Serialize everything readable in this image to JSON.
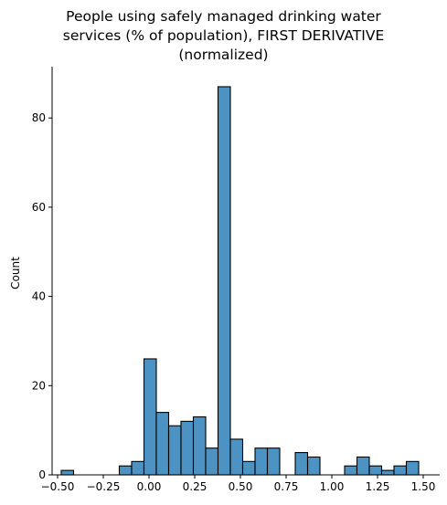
{
  "chart_data": {
    "type": "bar",
    "title_lines": [
      "People using safely managed drinking water",
      "services (% of population), FIRST DERIVATIVE",
      "(normalized)"
    ],
    "xlabel": "",
    "ylabel": "Count",
    "xlim": [
      -0.53,
      1.59
    ],
    "ylim": [
      0,
      91.5
    ],
    "bin_width": 0.0675,
    "bins": [
      {
        "x0": -0.48,
        "count": 1
      },
      {
        "x0": -0.4125,
        "count": 0
      },
      {
        "x0": -0.345,
        "count": 0
      },
      {
        "x0": -0.2775,
        "count": 0
      },
      {
        "x0": -0.21,
        "count": 0
      },
      {
        "x0": -0.1625,
        "count": 2
      },
      {
        "x0": -0.095,
        "count": 3
      },
      {
        "x0": -0.0275,
        "count": 26
      },
      {
        "x0": 0.04,
        "count": 14
      },
      {
        "x0": 0.1075,
        "count": 11
      },
      {
        "x0": 0.175,
        "count": 12
      },
      {
        "x0": 0.2425,
        "count": 13
      },
      {
        "x0": 0.31,
        "count": 6
      },
      {
        "x0": 0.3775,
        "count": 87
      },
      {
        "x0": 0.445,
        "count": 8
      },
      {
        "x0": 0.5125,
        "count": 3
      },
      {
        "x0": 0.58,
        "count": 6
      },
      {
        "x0": 0.6475,
        "count": 6
      },
      {
        "x0": 0.715,
        "count": 0
      },
      {
        "x0": 0.8,
        "count": 5
      },
      {
        "x0": 0.8675,
        "count": 4
      },
      {
        "x0": 0.935,
        "count": 0
      },
      {
        "x0": 1.0025,
        "count": 0
      },
      {
        "x0": 1.07,
        "count": 2
      },
      {
        "x0": 1.1375,
        "count": 4
      },
      {
        "x0": 1.205,
        "count": 2
      },
      {
        "x0": 1.2725,
        "count": 1
      },
      {
        "x0": 1.34,
        "count": 2
      },
      {
        "x0": 1.4075,
        "count": 3
      }
    ],
    "x_ticks": [
      {
        "value": -0.5,
        "label": "−0.50"
      },
      {
        "value": -0.25,
        "label": "−0.25"
      },
      {
        "value": 0.0,
        "label": "0.00"
      },
      {
        "value": 0.25,
        "label": "0.25"
      },
      {
        "value": 0.5,
        "label": "0.50"
      },
      {
        "value": 0.75,
        "label": "0.75"
      },
      {
        "value": 1.0,
        "label": "1.00"
      },
      {
        "value": 1.25,
        "label": "1.25"
      },
      {
        "value": 1.5,
        "label": "1.50"
      }
    ],
    "y_ticks": [
      {
        "value": 0,
        "label": "0"
      },
      {
        "value": 20,
        "label": "20"
      },
      {
        "value": 40,
        "label": "40"
      },
      {
        "value": 60,
        "label": "60"
      },
      {
        "value": 80,
        "label": "80"
      }
    ],
    "grid": false,
    "legend": "none",
    "colors": {
      "bar_fill": "#4c92c3",
      "bar_edge": "#000000",
      "axis": "#000000"
    }
  }
}
